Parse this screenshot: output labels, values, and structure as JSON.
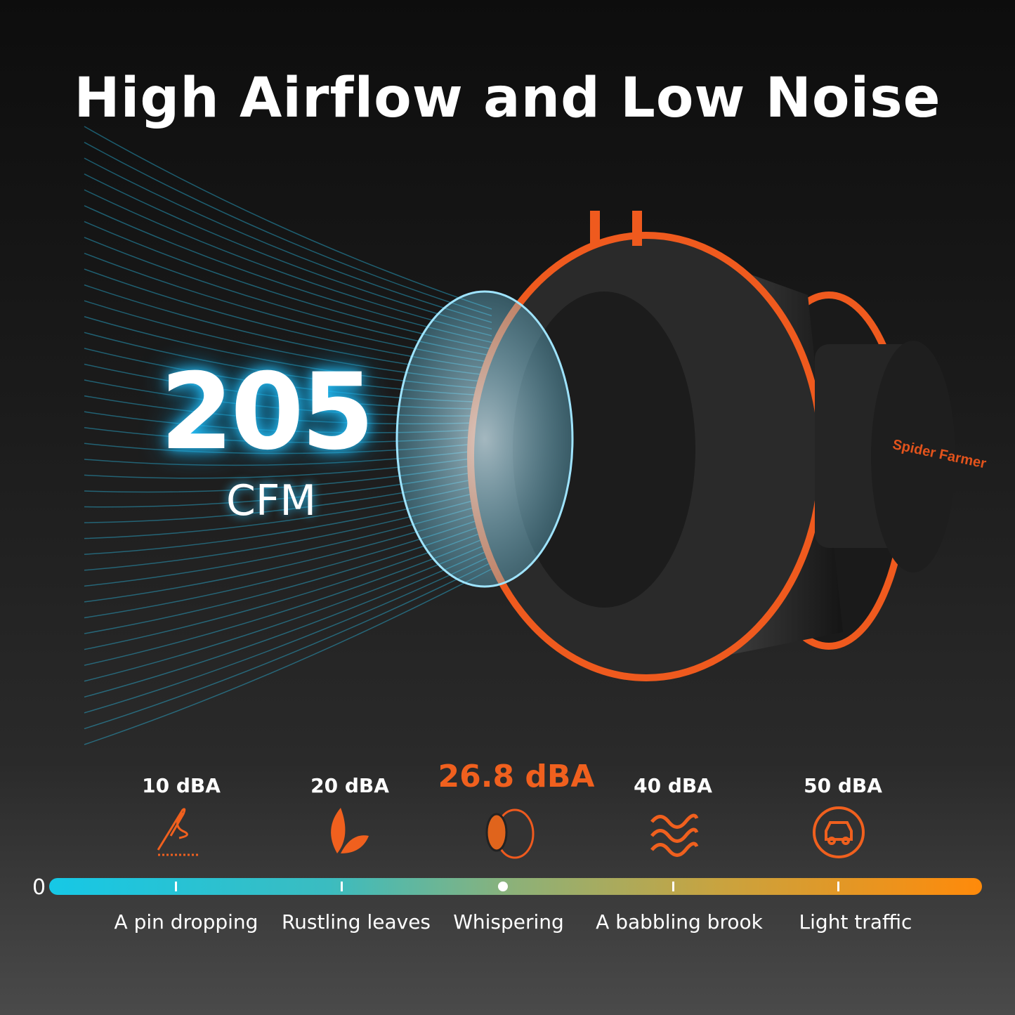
{
  "title": "High Airflow and Low Noise",
  "airflow": {
    "value": "205",
    "unit": "CFM"
  },
  "brand_logo": "Spider Farmer",
  "colors": {
    "accent": "#f0601e",
    "glow": "#29c6ff",
    "scale_start": "#16c8e6",
    "scale_end": "#ff8a0a"
  },
  "scale": {
    "zero_label": "0",
    "marker_value_dba": 26.8,
    "levels": [
      {
        "value": "10 dBA",
        "label": "A pin dropping",
        "icon": "needle-icon"
      },
      {
        "value": "20 dBA",
        "label": "Rustling leaves",
        "icon": "leaf-icon"
      },
      {
        "value": "26.8 dBA",
        "label": "Whispering",
        "icon": "fan-icon"
      },
      {
        "value": "40 dBA",
        "label": "A babbling brook",
        "icon": "waves-icon"
      },
      {
        "value": "50 dBA",
        "label": "Light traffic",
        "icon": "car-icon"
      }
    ]
  }
}
